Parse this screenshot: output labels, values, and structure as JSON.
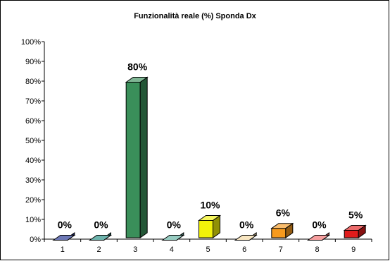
{
  "chart_data": {
    "type": "bar",
    "title": "Funzionalità reale (%) Sponda Dx",
    "categories": [
      "1",
      "2",
      "3",
      "4",
      "5",
      "6",
      "7",
      "8",
      "9"
    ],
    "values": [
      0,
      0,
      80,
      0,
      10,
      0,
      6,
      0,
      5
    ],
    "data_labels": [
      "0%",
      "0%",
      "80%",
      "0%",
      "10%",
      "0%",
      "6%",
      "0%",
      "5%"
    ],
    "colors": [
      "#1f2f8f",
      "#1f8a80",
      "#3a8f5a",
      "#5fb0a0",
      "#f2f20a",
      "#f4d9a0",
      "#f79a1e",
      "#f26b6b",
      "#e01b1b"
    ],
    "yticks": [
      "0%",
      "10%",
      "20%",
      "30%",
      "40%",
      "50%",
      "60%",
      "70%",
      "80%",
      "90%",
      "100%"
    ],
    "ylim": [
      0,
      100
    ],
    "xlabel": "",
    "ylabel": "",
    "grid": false,
    "legend": false
  }
}
